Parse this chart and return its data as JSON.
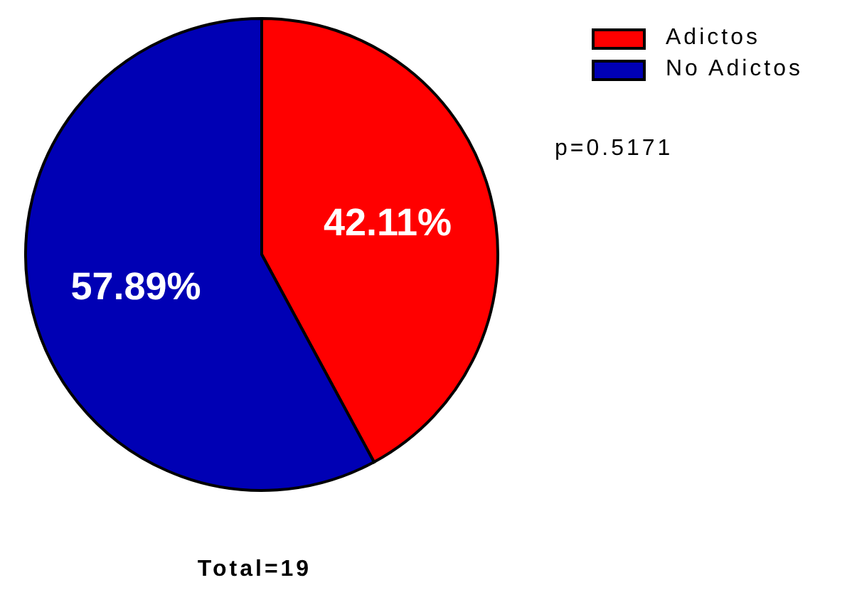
{
  "chart_data": {
    "type": "pie",
    "categories": [
      "Adictos",
      "No Adictos"
    ],
    "values": [
      42.11,
      57.89
    ],
    "colors": [
      "#ff0000",
      "#0000b4"
    ],
    "value_labels": [
      "42.11%",
      "57.89%"
    ],
    "legend": "top right",
    "annotations": [
      "p=0.5171",
      "Total=19"
    ]
  }
}
